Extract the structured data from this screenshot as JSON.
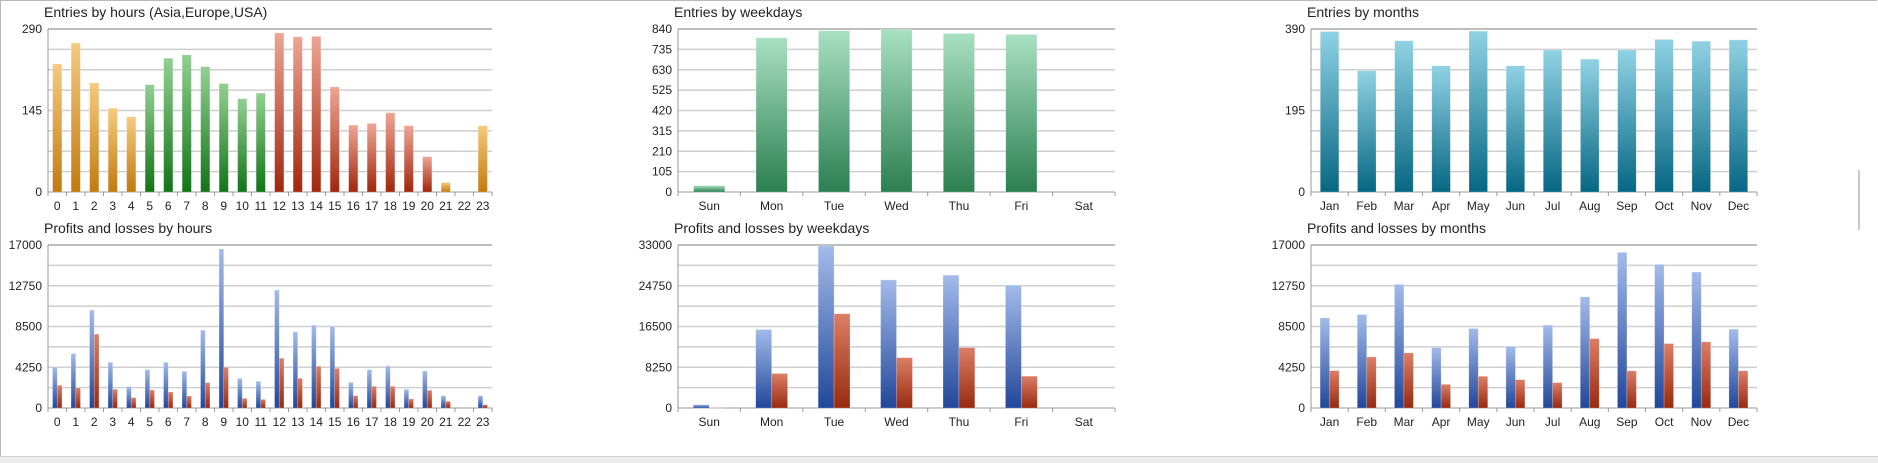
{
  "chart_data": [
    {
      "id": "entries-hours",
      "type": "bar",
      "title": "Entries by hours (Asia,Europe,USA)",
      "categories": [
        "0",
        "1",
        "2",
        "3",
        "4",
        "5",
        "6",
        "7",
        "8",
        "9",
        "10",
        "11",
        "12",
        "13",
        "14",
        "15",
        "16",
        "17",
        "18",
        "19",
        "20",
        "21",
        "22",
        "23"
      ],
      "series": [
        {
          "name": "Entries",
          "values": [
            228,
            265,
            194,
            149,
            134,
            191,
            238,
            244,
            223,
            193,
            166,
            176,
            283,
            276,
            277,
            187,
            119,
            122,
            141,
            118,
            63,
            17,
            0,
            118
          ]
        }
      ],
      "bar_groups": [
        "asia",
        "asia",
        "asia",
        "asia",
        "asia",
        "europe",
        "europe",
        "europe",
        "europe",
        "europe",
        "europe",
        "europe",
        "usa",
        "usa",
        "usa",
        "usa",
        "usa",
        "usa",
        "usa",
        "usa",
        "usa",
        "asia",
        "asia",
        "asia"
      ],
      "group_colors": {
        "asia": [
          "#f6ca80",
          "#c27a0e"
        ],
        "europe": [
          "#92d092",
          "#137417"
        ],
        "usa": [
          "#eea595",
          "#a1270d"
        ]
      },
      "ylim": [
        0,
        290
      ],
      "ytick_labels": [
        "0",
        "145",
        "290"
      ],
      "grid_divisions": 8
    },
    {
      "id": "entries-weekdays",
      "type": "bar",
      "title": "Entries by weekdays",
      "categories": [
        "Sun",
        "Mon",
        "Tue",
        "Wed",
        "Thu",
        "Fri",
        "Sat"
      ],
      "series": [
        {
          "name": "Entries",
          "values": [
            33,
            795,
            831,
            838,
            817,
            812,
            0
          ],
          "colors": [
            "#a9e0c3",
            "#2c7f50"
          ]
        }
      ],
      "ylim": [
        0,
        840
      ],
      "ytick_labels": [
        "0",
        "105",
        "210",
        "315",
        "420",
        "525",
        "630",
        "735",
        "840"
      ],
      "grid_divisions": 8
    },
    {
      "id": "entries-months",
      "type": "bar",
      "title": "Entries by months",
      "categories": [
        "Jan",
        "Feb",
        "Mar",
        "Apr",
        "May",
        "Jun",
        "Jul",
        "Aug",
        "Sep",
        "Oct",
        "Nov",
        "Dec"
      ],
      "series": [
        {
          "name": "Entries",
          "values": [
            384,
            290,
            362,
            302,
            385,
            302,
            340,
            318,
            340,
            365,
            361,
            364
          ],
          "colors": [
            "#90d2e4",
            "#066783"
          ]
        }
      ],
      "ylim": [
        0,
        390
      ],
      "ytick_labels": [
        "0",
        "195",
        "390"
      ],
      "grid_divisions": 8
    },
    {
      "id": "pnl-hours",
      "type": "bar",
      "title": "Profits and losses by hours",
      "categories": [
        "0",
        "1",
        "2",
        "3",
        "4",
        "5",
        "6",
        "7",
        "8",
        "9",
        "10",
        "11",
        "12",
        "13",
        "14",
        "15",
        "16",
        "17",
        "18",
        "19",
        "20",
        "21",
        "22",
        "23"
      ],
      "series": [
        {
          "name": "Profits",
          "values": [
            4280,
            5680,
            10200,
            4770,
            2230,
            4000,
            4770,
            3830,
            8120,
            16580,
            3100,
            2790,
            12300,
            7940,
            8640,
            8500,
            2680,
            4000,
            4390,
            1950,
            3870,
            1290,
            0,
            1290
          ],
          "colors": [
            "#a3bbea",
            "#22479a"
          ]
        },
        {
          "name": "Losses",
          "values": [
            2370,
            2090,
            7700,
            1950,
            1080,
            1880,
            1670,
            1250,
            2650,
            4250,
            1010,
            900,
            5190,
            3100,
            4350,
            4140,
            1290,
            2260,
            2260,
            940,
            1850,
            700,
            0,
            350
          ],
          "colors": [
            "#dc7e66",
            "#982a0f"
          ]
        }
      ],
      "ylim": [
        0,
        17000
      ],
      "ytick_labels": [
        "0",
        "4250",
        "8500",
        "12750",
        "17000"
      ],
      "grid_divisions": 8
    },
    {
      "id": "pnl-weekdays",
      "type": "bar",
      "title": "Profits and losses by weekdays",
      "categories": [
        "Sun",
        "Mon",
        "Tue",
        "Wed",
        "Thu",
        "Fri",
        "Sat"
      ],
      "series": [
        {
          "name": "Profits",
          "values": [
            680,
            15890,
            32800,
            25940,
            26890,
            24850,
            0
          ],
          "colors": [
            "#a3bbea",
            "#22479a"
          ]
        },
        {
          "name": "Losses",
          "values": [
            70,
            6990,
            19080,
            10190,
            12220,
            6450,
            0
          ],
          "colors": [
            "#dc7e66",
            "#982a0f"
          ]
        }
      ],
      "ylim": [
        0,
        33000
      ],
      "ytick_labels": [
        "0",
        "8250",
        "16500",
        "24750",
        "33000"
      ],
      "grid_divisions": 8
    },
    {
      "id": "pnl-months",
      "type": "bar",
      "title": "Profits and losses by months",
      "categories": [
        "Jan",
        "Feb",
        "Mar",
        "Apr",
        "May",
        "Jun",
        "Jul",
        "Aug",
        "Sep",
        "Oct",
        "Nov",
        "Dec"
      ],
      "series": [
        {
          "name": "Profits",
          "values": [
            9400,
            9750,
            12890,
            6300,
            8290,
            6410,
            8640,
            11600,
            16230,
            14980,
            14180,
            8220
          ],
          "colors": [
            "#a3bbea",
            "#22479a"
          ]
        },
        {
          "name": "Losses",
          "values": [
            3900,
            5330,
            5750,
            2470,
            3310,
            2960,
            2650,
            7240,
            3870,
            6720,
            6900,
            3870
          ],
          "colors": [
            "#dc7e66",
            "#982a0f"
          ]
        }
      ],
      "ylim": [
        0,
        17000
      ],
      "ytick_labels": [
        "0",
        "4250",
        "8500",
        "12750",
        "17000"
      ],
      "grid_divisions": 8
    }
  ]
}
